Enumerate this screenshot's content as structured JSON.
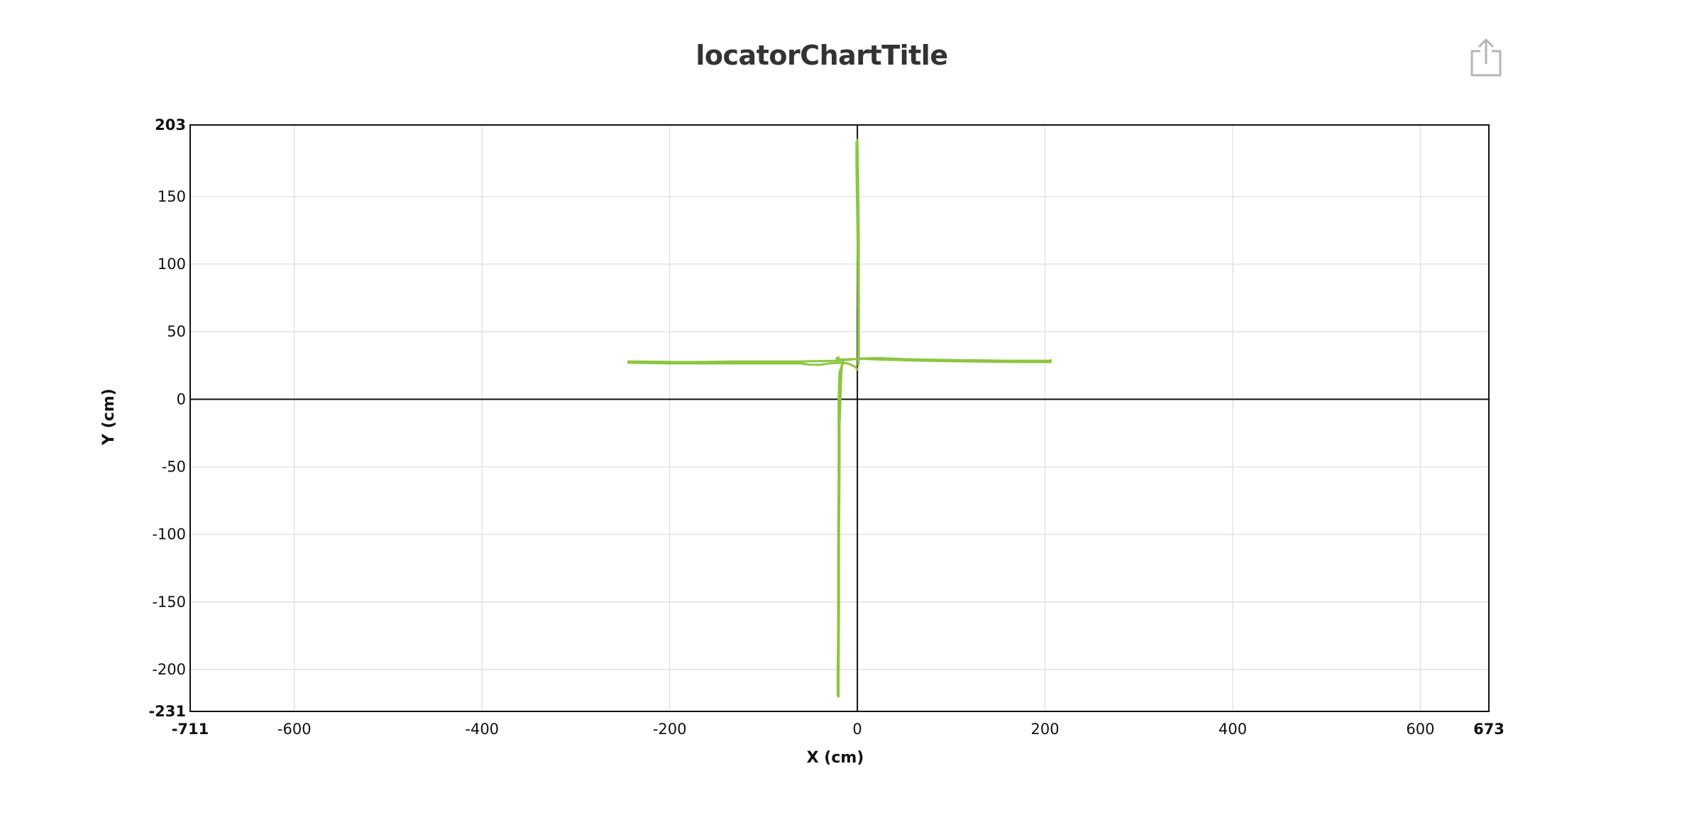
{
  "chart_data": {
    "type": "line",
    "title": "locatorChartTitle",
    "xlabel": "X (cm)",
    "ylabel": "Y (cm)",
    "xlim": [
      -711,
      673
    ],
    "ylim": [
      -231,
      203
    ],
    "x_ticks": [
      -600,
      -400,
      -200,
      0,
      200,
      400,
      600
    ],
    "y_ticks": [
      150,
      100,
      50,
      0,
      -50,
      -100,
      -150,
      -200
    ],
    "x_tick_labels": [
      "-711",
      "-600",
      "-400",
      "-200",
      "0",
      "200",
      "400",
      "600",
      "673"
    ],
    "y_tick_labels": [
      "203",
      "150",
      "100",
      "50",
      "0",
      "-50",
      "-100",
      "-150",
      "-200",
      "-231"
    ],
    "grid": true,
    "legend": "none",
    "series": [
      {
        "color": "#8dc63f",
        "points": [
          [
            -244,
            28
          ],
          [
            -180,
            27.5
          ],
          [
            -130,
            28
          ],
          [
            -60,
            28
          ],
          [
            -22,
            28.5
          ],
          [
            -5,
            29.5
          ],
          [
            0,
            30
          ],
          [
            20,
            30.5
          ],
          [
            60,
            29.5
          ],
          [
            110,
            29
          ],
          [
            160,
            28.5
          ],
          [
            205,
            28.5
          ],
          [
            206,
            29
          ],
          [
            206,
            27.5
          ],
          [
            180,
            27.5
          ],
          [
            120,
            28
          ],
          [
            70,
            28.5
          ],
          [
            20,
            29.5
          ],
          [
            2,
            30
          ],
          [
            -12,
            29.5
          ],
          [
            -22,
            29.5
          ],
          [
            -22,
            30.5
          ],
          [
            -20,
            31
          ]
        ]
      },
      {
        "color": "#8dc63f",
        "points": [
          [
            -244,
            27
          ],
          [
            -200,
            26.5
          ],
          [
            -150,
            26.5
          ],
          [
            -100,
            26.5
          ],
          [
            -60,
            26.5
          ],
          [
            -50,
            25.5
          ],
          [
            -40,
            25.5
          ],
          [
            -30,
            26.5
          ],
          [
            -19,
            27
          ],
          [
            -10,
            26.5
          ],
          [
            -2,
            24
          ],
          [
            0,
            22
          ]
        ]
      },
      {
        "color": "#8dc63f",
        "points": [
          [
            -15,
            28
          ],
          [
            -19,
            20
          ],
          [
            -20,
            0
          ],
          [
            -20,
            -60
          ],
          [
            -20.5,
            -120
          ],
          [
            -20.5,
            -170
          ],
          [
            -21,
            -200
          ],
          [
            -21,
            -219
          ],
          [
            -20,
            -220
          ],
          [
            -20,
            -200
          ],
          [
            -19.5,
            -150
          ],
          [
            -19.5,
            -100
          ],
          [
            -19,
            -50
          ],
          [
            -19,
            -20
          ],
          [
            -18,
            0
          ],
          [
            -17,
            20
          ],
          [
            -16,
            27
          ]
        ]
      },
      {
        "color": "#8dc63f",
        "points": [
          [
            1,
            26
          ],
          [
            1,
            60
          ],
          [
            0.5,
            100
          ],
          [
            0,
            130
          ],
          [
            -0.5,
            150
          ],
          [
            -1,
            175
          ],
          [
            -1,
            190
          ],
          [
            0,
            192
          ],
          [
            0.5,
            180
          ],
          [
            1,
            150
          ],
          [
            1.5,
            120
          ],
          [
            1.5,
            90
          ],
          [
            1.5,
            60
          ],
          [
            1.5,
            30
          ],
          [
            1,
            25
          ]
        ]
      }
    ]
  }
}
